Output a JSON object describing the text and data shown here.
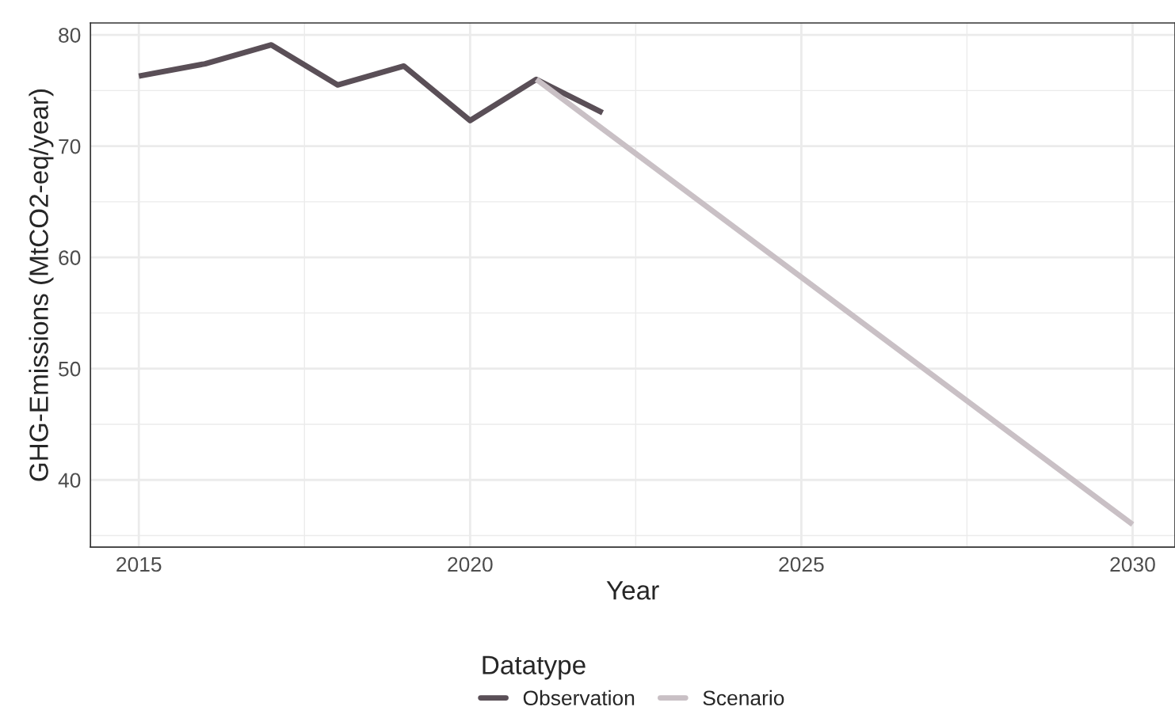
{
  "chart_data": {
    "type": "line",
    "xlabel": "Year",
    "ylabel": "GHG-Emissions (MtCO2-eq/year)",
    "legend_title": "Datatype",
    "legend": "bottom",
    "grid": true,
    "line_style": "solid",
    "marker": "none",
    "xlim": [
      2014.27,
      2030.64
    ],
    "xticks": [
      2015,
      2020,
      2025,
      2030
    ],
    "ylim": [
      33.96,
      81.07
    ],
    "yticks": [
      40,
      50,
      60,
      70,
      80
    ],
    "series": [
      {
        "name": "Observation",
        "color": "#5a4f57",
        "x": [
          2015,
          2016,
          2017,
          2018,
          2019,
          2020,
          2021,
          2022
        ],
        "values": [
          76.3,
          77.4,
          79.1,
          75.5,
          77.2,
          72.3,
          76.0,
          73.0
        ]
      },
      {
        "name": "Scenario",
        "color": "#c9c0c5",
        "x": [
          2021,
          2030
        ],
        "values": [
          76.0,
          36.0
        ]
      }
    ]
  }
}
